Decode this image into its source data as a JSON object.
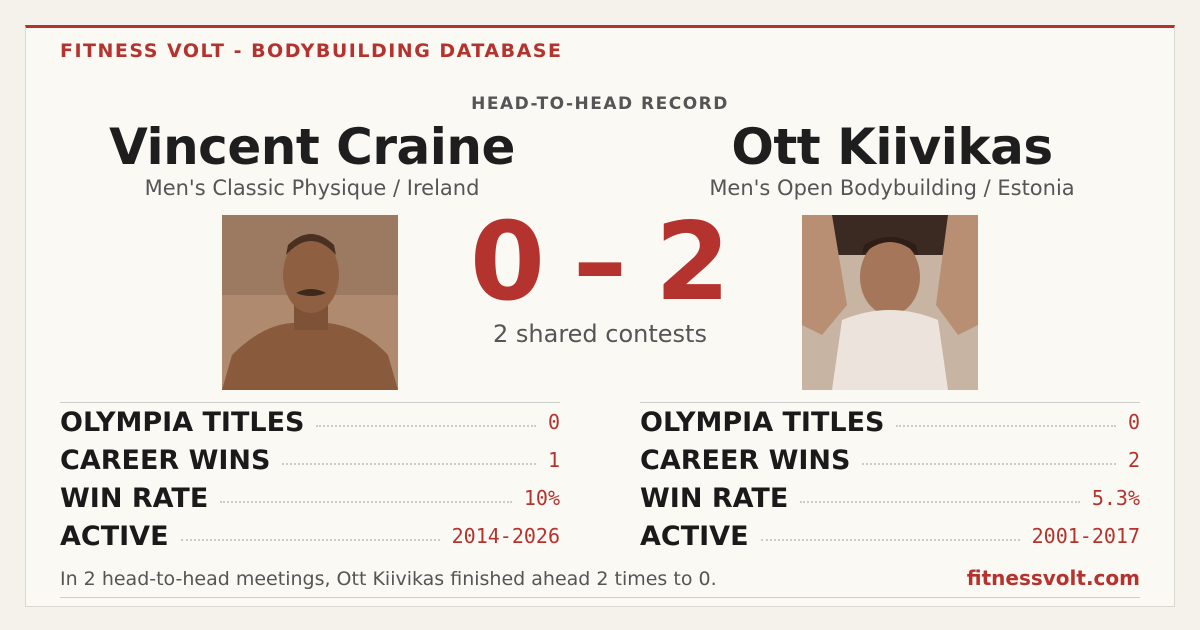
{
  "header": {
    "brand": "FITNESS VOLT - BODYBUILDING DATABASE"
  },
  "record_label": "HEAD-TO-HEAD RECORD",
  "athletes": [
    {
      "name": "Vincent Craine",
      "division": "Men's Classic Physique / Ireland",
      "score": 0,
      "stats": [
        {
          "label": "OLYMPIA TITLES",
          "value": "0"
        },
        {
          "label": "CAREER WINS",
          "value": "1"
        },
        {
          "label": "WIN RATE",
          "value": "10%"
        },
        {
          "label": "ACTIVE",
          "value": "2014-2026"
        }
      ]
    },
    {
      "name": "Ott Kiivikas",
      "division": "Men's Open Bodybuilding / Estonia",
      "score": 2,
      "stats": [
        {
          "label": "OLYMPIA TITLES",
          "value": "0"
        },
        {
          "label": "CAREER WINS",
          "value": "2"
        },
        {
          "label": "WIN RATE",
          "value": "5.3%"
        },
        {
          "label": "ACTIVE",
          "value": "2001-2017"
        }
      ]
    }
  ],
  "score_separator": "–",
  "shared": "2 shared contests",
  "footer": {
    "summary": "In 2 head-to-head meetings, Ott Kiivikas finished ahead 2 times to 0.",
    "site": "fitnessvolt.com"
  }
}
